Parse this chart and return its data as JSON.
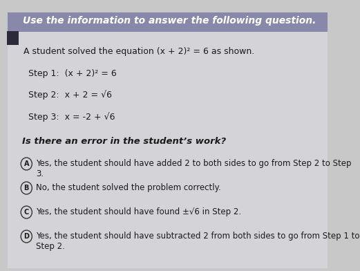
{
  "background_color": "#c8c8c8",
  "page_color": "#d4d4d8",
  "header_bg": "#8888aa",
  "header_text": "Use the information to answer the following question.",
  "intro_text": "A student solved the equation (x + 2)² = 6 as shown.",
  "steps": [
    "Step 1:  (x + 2)² = 6",
    "Step 2:  x + 2 = √6",
    "Step 3:  x = -2 + √6"
  ],
  "question": "Is there an error in the student’s work?",
  "options": [
    {
      "label": "A",
      "text": "Yes, the student should have added 2 to both sides to go from Step 2 to Step 3."
    },
    {
      "label": "B",
      "text": "No, the student solved the problem correctly."
    },
    {
      "label": "C",
      "text": "Yes, the student should have found ±√6 in Step 2."
    },
    {
      "label": "D",
      "text": "Yes, the student should have subtracted 2 from both sides to go from Step 1 to Step 2."
    }
  ],
  "left_square_color": "#2a2a3a",
  "tilt_deg": -3.5,
  "text_color": "#1a1a1a"
}
